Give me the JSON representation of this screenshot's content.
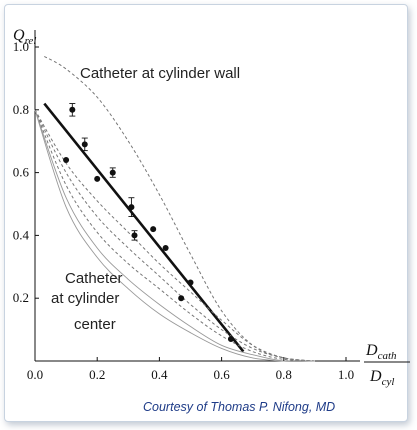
{
  "chart_data": {
    "type": "scatter",
    "ylabel": {
      "base": "Q",
      "sub": "rel"
    },
    "xlabel": {
      "num_base": "D",
      "num_sub": "cath",
      "den_base": "D",
      "den_sub": "cyl"
    },
    "xlim": [
      0,
      1.05
    ],
    "ylim": [
      0,
      1.05
    ],
    "xticks": [
      "0.0",
      "0.2",
      "0.4",
      "0.6",
      "0.8",
      "1.0"
    ],
    "yticks": [
      "0.2",
      "0.4",
      "0.6",
      "0.8",
      "1.0"
    ],
    "series": [
      {
        "kind": "points",
        "points": [
          {
            "x": 0.1,
            "y": 0.64,
            "err": 0.0
          },
          {
            "x": 0.12,
            "y": 0.8,
            "err": 0.02
          },
          {
            "x": 0.16,
            "y": 0.69,
            "err": 0.02
          },
          {
            "x": 0.2,
            "y": 0.58,
            "err": 0.0
          },
          {
            "x": 0.25,
            "y": 0.6,
            "err": 0.015
          },
          {
            "x": 0.31,
            "y": 0.49,
            "err": 0.03
          },
          {
            "x": 0.32,
            "y": 0.4,
            "err": 0.015
          },
          {
            "x": 0.38,
            "y": 0.42,
            "err": 0.0
          },
          {
            "x": 0.42,
            "y": 0.36,
            "err": 0.0
          },
          {
            "x": 0.47,
            "y": 0.2,
            "err": 0.0
          },
          {
            "x": 0.5,
            "y": 0.25,
            "err": 0.0
          },
          {
            "x": 0.63,
            "y": 0.07,
            "err": 0.0
          }
        ]
      },
      {
        "kind": "fit",
        "x": [
          0.03,
          0.67
        ],
        "y": [
          0.82,
          0.03
        ]
      },
      {
        "kind": "dashed",
        "x": [
          0.03,
          0.1,
          0.2,
          0.3,
          0.4,
          0.5,
          0.6,
          0.7,
          0.8,
          0.9
        ],
        "y": [
          0.97,
          0.93,
          0.84,
          0.7,
          0.53,
          0.34,
          0.16,
          0.05,
          0.01,
          0.0
        ]
      },
      {
        "kind": "dashed",
        "x": [
          0.0,
          0.1,
          0.2,
          0.3,
          0.4,
          0.5,
          0.6,
          0.7,
          0.8,
          0.9
        ],
        "y": [
          0.8,
          0.63,
          0.51,
          0.41,
          0.31,
          0.22,
          0.13,
          0.05,
          0.01,
          0.0
        ]
      },
      {
        "kind": "dashed",
        "x": [
          0.0,
          0.1,
          0.2,
          0.3,
          0.4,
          0.5,
          0.6,
          0.7,
          0.8,
          0.9
        ],
        "y": [
          0.8,
          0.6,
          0.46,
          0.36,
          0.27,
          0.18,
          0.1,
          0.04,
          0.01,
          0.0
        ]
      },
      {
        "kind": "dashed",
        "x": [
          0.0,
          0.1,
          0.2,
          0.3,
          0.4,
          0.5,
          0.6,
          0.7,
          0.8,
          0.9
        ],
        "y": [
          0.8,
          0.56,
          0.41,
          0.31,
          0.23,
          0.15,
          0.08,
          0.03,
          0.005,
          0.0
        ]
      },
      {
        "kind": "solid-thin",
        "x": [
          0.0,
          0.1,
          0.2,
          0.3,
          0.4,
          0.5,
          0.6,
          0.7,
          0.8,
          0.9
        ],
        "y": [
          0.8,
          0.52,
          0.36,
          0.26,
          0.18,
          0.11,
          0.05,
          0.02,
          0.0,
          0.0
        ]
      },
      {
        "kind": "solid-thin",
        "x": [
          0.0,
          0.1,
          0.2,
          0.3,
          0.4,
          0.5,
          0.6,
          0.7,
          0.8,
          0.9
        ],
        "y": [
          0.8,
          0.49,
          0.33,
          0.23,
          0.15,
          0.09,
          0.04,
          0.01,
          0.0,
          0.0
        ]
      }
    ],
    "annotations": {
      "wall": "Catheter at cylinder wall",
      "center_lines": [
        "Catheter",
        "at cylinder",
        "center"
      ]
    }
  },
  "credit": "Courtesy of Thomas P. Nifong, MD",
  "colors": {
    "ink": "#111111",
    "dash": "#777777",
    "thin": "#999999",
    "credit": "#1f3c88"
  }
}
